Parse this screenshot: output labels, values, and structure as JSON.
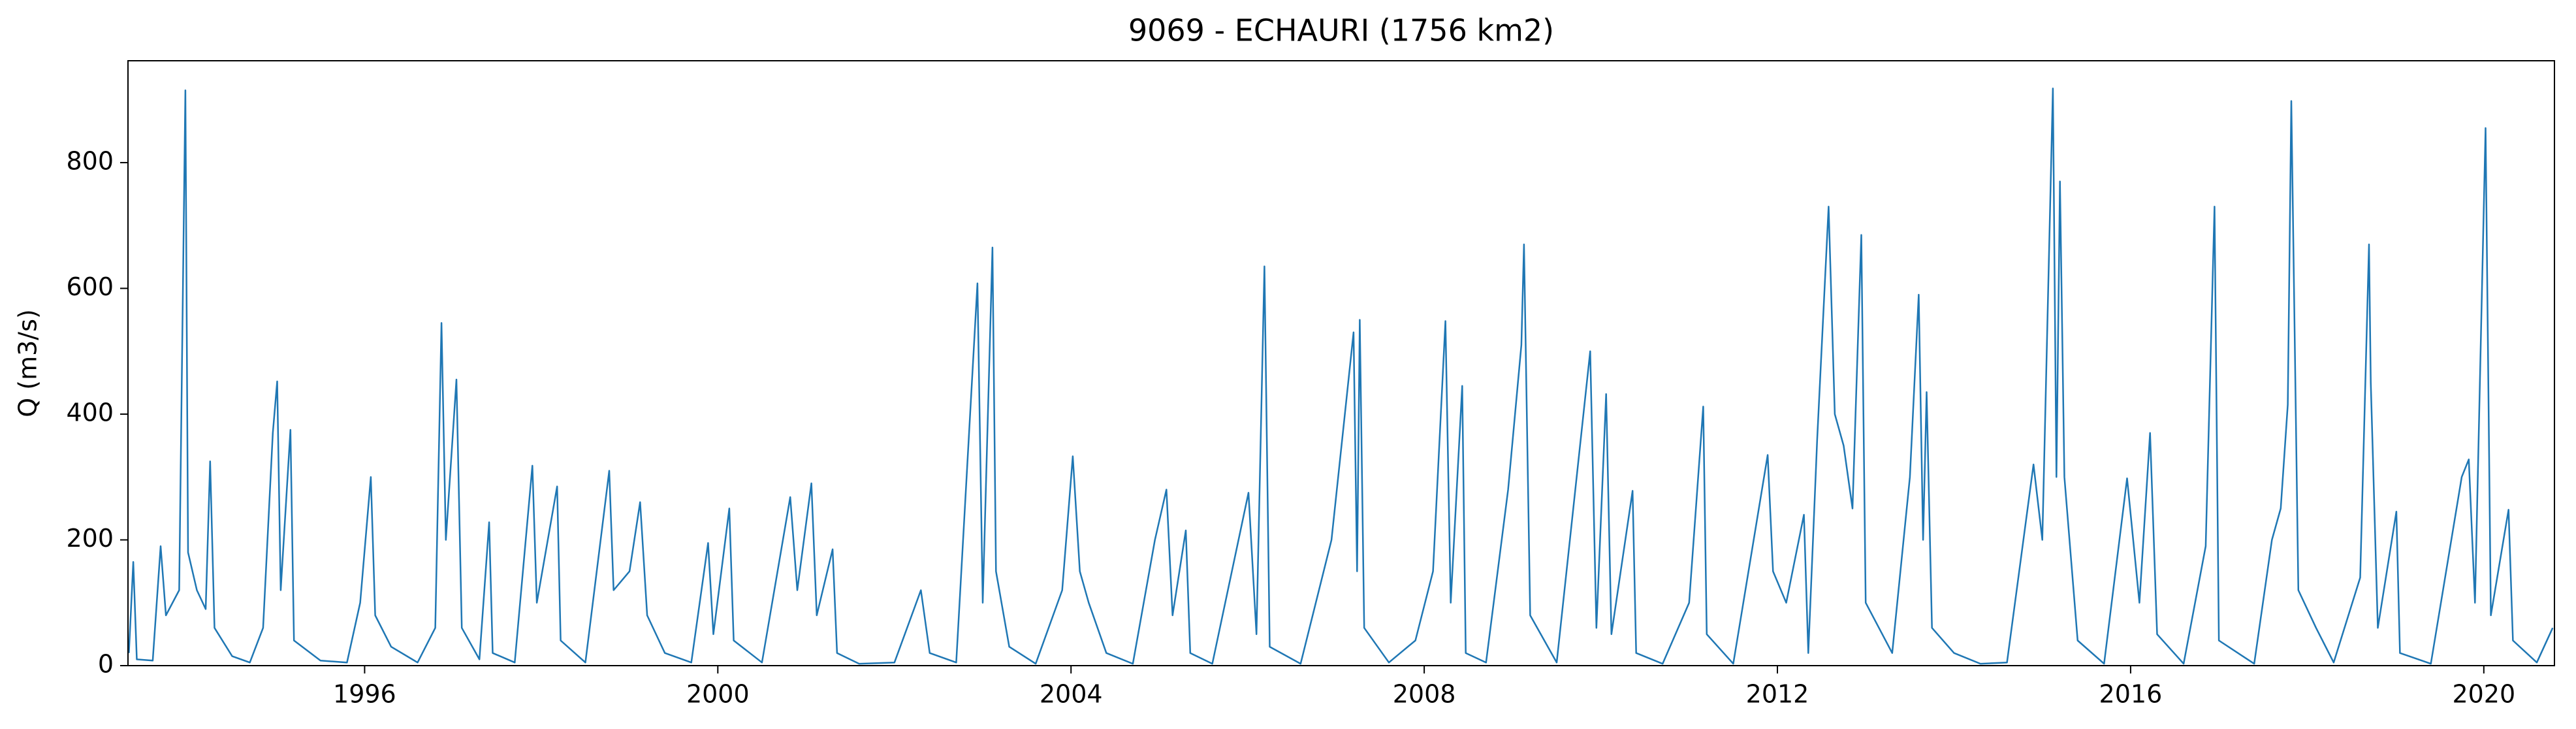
{
  "chart_data": {
    "type": "line",
    "title": "9069 - ECHAURI (1756 km2)",
    "ylabel": "Q (m3/s)",
    "x": [
      1993.33,
      1993.38,
      1993.42,
      1993.6,
      1993.69,
      1993.75,
      1993.9,
      1993.97,
      1994.0,
      1994.1,
      1994.2,
      1994.25,
      1994.3,
      1994.5,
      1994.7,
      1994.85,
      1994.96,
      1995.01,
      1995.05,
      1995.16,
      1995.2,
      1995.5,
      1995.8,
      1995.95,
      1996.07,
      1996.12,
      1996.3,
      1996.6,
      1996.8,
      1996.87,
      1996.92,
      1997.04,
      1997.1,
      1997.3,
      1997.41,
      1997.45,
      1997.7,
      1997.9,
      1997.95,
      1998.18,
      1998.22,
      1998.5,
      1998.77,
      1998.82,
      1999.0,
      1999.12,
      1999.2,
      1999.4,
      1999.7,
      1999.89,
      1999.95,
      2000.13,
      2000.18,
      2000.5,
      2000.82,
      2000.9,
      2001.06,
      2001.12,
      2001.3,
      2001.35,
      2001.6,
      2002.0,
      2002.3,
      2002.4,
      2002.7,
      2002.94,
      2003.0,
      2003.11,
      2003.15,
      2003.3,
      2003.6,
      2003.9,
      2004.02,
      2004.1,
      2004.2,
      2004.4,
      2004.7,
      2004.95,
      2005.08,
      2005.15,
      2005.3,
      2005.35,
      2005.6,
      2006.01,
      2006.1,
      2006.19,
      2006.25,
      2006.6,
      2006.95,
      2007.2,
      2007.24,
      2007.27,
      2007.32,
      2007.6,
      2007.9,
      2008.1,
      2008.24,
      2008.3,
      2008.43,
      2008.47,
      2008.7,
      2008.95,
      2009.1,
      2009.13,
      2009.2,
      2009.5,
      2009.88,
      2009.95,
      2010.06,
      2010.12,
      2010.36,
      2010.4,
      2010.7,
      2011.0,
      2011.16,
      2011.2,
      2011.5,
      2011.89,
      2011.95,
      2012.1,
      2012.3,
      2012.35,
      2012.45,
      2012.58,
      2012.65,
      2012.75,
      2012.85,
      2012.95,
      2013.0,
      2013.3,
      2013.5,
      2013.6,
      2013.65,
      2013.69,
      2013.75,
      2014.0,
      2014.3,
      2014.6,
      2014.9,
      2015.0,
      2015.12,
      2015.16,
      2015.2,
      2015.25,
      2015.4,
      2015.7,
      2015.96,
      2016.1,
      2016.22,
      2016.3,
      2016.6,
      2016.85,
      2016.95,
      2017.0,
      2017.4,
      2017.6,
      2017.7,
      2017.78,
      2017.82,
      2017.9,
      2018.1,
      2018.3,
      2018.6,
      2018.7,
      2018.72,
      2018.8,
      2019.01,
      2019.05,
      2019.4,
      2019.75,
      2019.83,
      2019.9,
      2020.02,
      2020.08,
      2020.28,
      2020.33,
      2020.6,
      2020.78
    ],
    "values": [
      20,
      165,
      10,
      8,
      190,
      80,
      120,
      915,
      180,
      120,
      90,
      325,
      60,
      15,
      5,
      60,
      370,
      452,
      120,
      375,
      40,
      8,
      5,
      100,
      300,
      80,
      30,
      5,
      60,
      545,
      200,
      455,
      60,
      10,
      228,
      20,
      5,
      318,
      100,
      285,
      40,
      5,
      310,
      120,
      150,
      260,
      80,
      20,
      5,
      195,
      50,
      250,
      40,
      5,
      268,
      120,
      290,
      80,
      185,
      20,
      3,
      5,
      120,
      20,
      5,
      608,
      100,
      665,
      150,
      30,
      3,
      120,
      333,
      150,
      100,
      20,
      3,
      200,
      280,
      80,
      215,
      20,
      3,
      275,
      50,
      635,
      30,
      3,
      200,
      530,
      150,
      550,
      60,
      5,
      40,
      150,
      548,
      100,
      445,
      20,
      5,
      280,
      510,
      670,
      80,
      5,
      500,
      60,
      432,
      50,
      278,
      20,
      3,
      100,
      412,
      50,
      3,
      335,
      150,
      100,
      240,
      20,
      360,
      730,
      400,
      350,
      250,
      685,
      100,
      20,
      300,
      590,
      200,
      435,
      60,
      20,
      3,
      5,
      320,
      200,
      918,
      300,
      770,
      300,
      40,
      3,
      298,
      100,
      370,
      50,
      3,
      190,
      730,
      40,
      3,
      200,
      250,
      415,
      898,
      120,
      60,
      5,
      140,
      670,
      450,
      60,
      245,
      20,
      3,
      300,
      328,
      100,
      855,
      80,
      248,
      40,
      5,
      60
    ],
    "color": "#1f77b4",
    "xlim": [
      1993.32,
      2020.8
    ],
    "xticks": [
      1996,
      2000,
      2004,
      2008,
      2012,
      2016,
      2020
    ],
    "ylim": [
      0,
      962
    ],
    "yticks": [
      0,
      200,
      400,
      600,
      800
    ]
  }
}
